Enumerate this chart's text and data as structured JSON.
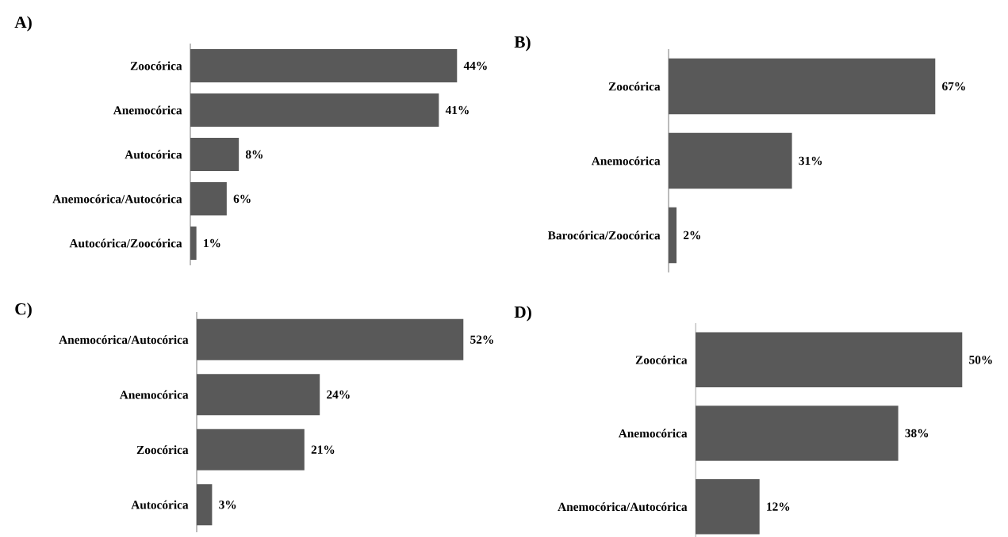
{
  "chart_data": [
    {
      "type": "bar",
      "orientation": "horizontal",
      "title": "A)",
      "color": "#595959",
      "categories": [
        "Zoocórica",
        "Anemocórica",
        "Autocórica",
        "Anemocórica/Autocórica",
        "Autocórica/Zoocórica"
      ],
      "values": [
        44,
        41,
        8,
        6,
        1
      ],
      "value_labels": [
        "44%",
        "41%",
        "8%",
        "6%",
        "1%"
      ]
    },
    {
      "type": "bar",
      "orientation": "horizontal",
      "title": "B)",
      "color": "#595959",
      "categories": [
        "Zoocórica",
        "Anemocórica",
        "Barocórica/Zoocórica"
      ],
      "values": [
        67,
        31,
        2
      ],
      "value_labels": [
        "67%",
        "31%",
        "2%"
      ]
    },
    {
      "type": "bar",
      "orientation": "horizontal",
      "title": "C)",
      "color": "#595959",
      "categories": [
        "Anemocórica/Autocórica",
        "Anemocórica",
        "Zoocórica",
        "Autocórica"
      ],
      "values": [
        52,
        24,
        21,
        3
      ],
      "value_labels": [
        "52%",
        "24%",
        "21%",
        "3%"
      ]
    },
    {
      "type": "bar",
      "orientation": "horizontal",
      "title": "D)",
      "color": "#595959",
      "categories": [
        "Zoocórica",
        "Anemocórica",
        "Anemocórica/Autocórica"
      ],
      "values": [
        50,
        38,
        12
      ],
      "value_labels": [
        "50%",
        "38%",
        "12%"
      ]
    }
  ]
}
